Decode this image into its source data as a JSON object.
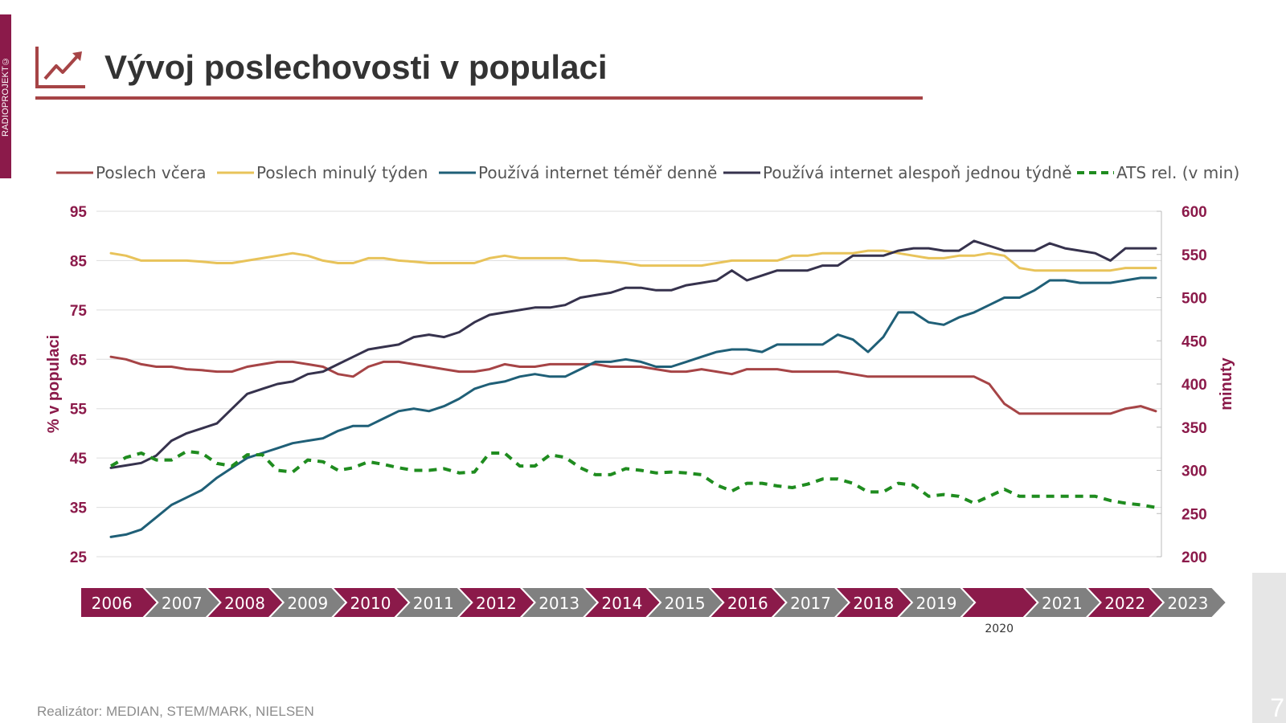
{
  "slide": {
    "title": "Vývoj poslechovosti v populaci",
    "side_brand": "RADIOPROJEKT©",
    "footer": "Realizátor: MEDIAN, STEM/MARK, NIELSEN",
    "page_number": "7",
    "colors": {
      "accent": "#8b1a4a",
      "rule": "#a64446",
      "arrow_gray": "#808080"
    }
  },
  "chart_data": {
    "type": "line",
    "title": "",
    "ylabel": "% v populaci",
    "y2label": "minuty",
    "ylim": [
      25,
      95
    ],
    "yticks": [
      95,
      85,
      75,
      65,
      55,
      45,
      35,
      25
    ],
    "y2lim": [
      200,
      600
    ],
    "y2ticks": [
      600,
      550,
      500,
      450,
      400,
      350,
      300,
      250,
      200
    ],
    "legend_position": "top",
    "grid": true,
    "x_start": 2006,
    "x_end": 2023.75,
    "year_labels": [
      "2006",
      "2007",
      "2008",
      "2009",
      "2010",
      "2011",
      "2012",
      "2013",
      "2014",
      "2015",
      "2016",
      "2017",
      "2018",
      "2019",
      "2020",
      "2021",
      "2022",
      "2023"
    ],
    "year_sub_label": "2020",
    "series": [
      {
        "name": "Poslech včera",
        "axis": "left",
        "color": "#a64446",
        "dash": false,
        "values": [
          65.5,
          65,
          64,
          63.5,
          63.5,
          63,
          62.8,
          62.5,
          62.5,
          63.5,
          64,
          64.5,
          64.5,
          64,
          63.5,
          62,
          61.5,
          63.5,
          64.5,
          64.5,
          64,
          63.5,
          63,
          62.5,
          62.5,
          63,
          64,
          63.5,
          63.5,
          64,
          64,
          64,
          64,
          63.5,
          63.5,
          63.5,
          63,
          62.5,
          62.5,
          63,
          62.5,
          62,
          63,
          63,
          63,
          62.5,
          62.5,
          62.5,
          62.5,
          62,
          61.5,
          61.5,
          61.5,
          61.5,
          61.5,
          61.5,
          61.5,
          61.5,
          60,
          56,
          54,
          54,
          54,
          54,
          54,
          54,
          54,
          55,
          55.5,
          54.5
        ]
      },
      {
        "name": "Poslech minulý týden",
        "axis": "left",
        "color": "#e8c35a",
        "dash": false,
        "values": [
          86.5,
          86,
          85,
          85,
          85,
          85,
          84.8,
          84.5,
          84.5,
          85,
          85.5,
          86,
          86.5,
          86,
          85,
          84.5,
          84.5,
          85.5,
          85.5,
          85,
          84.8,
          84.5,
          84.5,
          84.5,
          84.5,
          85.5,
          86,
          85.5,
          85.5,
          85.5,
          85.5,
          85,
          85,
          84.8,
          84.5,
          84,
          84,
          84,
          84,
          84,
          84.5,
          85,
          85,
          85,
          85,
          86,
          86,
          86.5,
          86.5,
          86.5,
          87,
          87,
          86.5,
          86,
          85.5,
          85.5,
          86,
          86,
          86.5,
          86,
          83.5,
          83,
          83,
          83,
          83,
          83,
          83,
          83.5,
          83.5,
          83.5
        ]
      },
      {
        "name": "Používá internet téměř denně",
        "axis": "left",
        "color": "#1f5f77",
        "dash": false,
        "values": [
          29,
          29.5,
          30.5,
          33,
          35.5,
          37,
          38.5,
          41,
          43,
          45,
          46,
          47,
          48,
          48.5,
          49,
          50.5,
          51.5,
          51.5,
          53,
          54.5,
          55,
          54.5,
          55.5,
          57,
          59,
          60,
          60.5,
          61.5,
          62,
          61.5,
          61.5,
          63,
          64.5,
          64.5,
          65,
          64.5,
          63.5,
          63.5,
          64.5,
          65.5,
          66.5,
          67,
          67,
          66.5,
          68,
          68,
          68,
          68,
          70,
          69,
          66.5,
          69.5,
          74.5,
          74.5,
          72.5,
          72,
          73.5,
          74.5,
          76,
          77.5,
          77.5,
          79,
          81,
          81,
          80.5,
          80.5,
          80.5,
          81,
          81.5,
          81.5
        ]
      },
      {
        "name": "Používá internet alespoň jednou týdně",
        "axis": "left",
        "color": "#36324d",
        "dash": false,
        "values": [
          43,
          43.5,
          44,
          45.5,
          48.5,
          50,
          51,
          52,
          55,
          58,
          59,
          60,
          60.5,
          62,
          62.5,
          64,
          65.5,
          67,
          67.5,
          68,
          69.5,
          70,
          69.5,
          70.5,
          72.5,
          74,
          74.5,
          75,
          75.5,
          75.5,
          76,
          77.5,
          78,
          78.5,
          79.5,
          79.5,
          79,
          79,
          80,
          80.5,
          81,
          83,
          81,
          82,
          83,
          83,
          83,
          84,
          84,
          86,
          86,
          86,
          87,
          87.5,
          87.5,
          87,
          87,
          89,
          88,
          87,
          87,
          87,
          88.5,
          87.5,
          87,
          86.5,
          85,
          87.5,
          87.5,
          87.5
        ]
      },
      {
        "name": "ATS rel. (v min)",
        "axis": "right",
        "color": "#1f8c1f",
        "dash": true,
        "values": [
          305,
          315,
          320,
          312,
          312,
          322,
          320,
          308,
          305,
          318,
          318,
          300,
          298,
          312,
          310,
          300,
          303,
          310,
          307,
          303,
          300,
          300,
          302,
          297,
          298,
          320,
          320,
          305,
          305,
          318,
          315,
          303,
          295,
          295,
          302,
          300,
          297,
          298,
          297,
          295,
          283,
          276,
          285,
          285,
          282,
          280,
          284,
          290,
          290,
          285,
          275,
          275,
          285,
          283,
          270,
          272,
          270,
          262,
          270,
          278,
          270,
          270,
          270,
          270,
          270,
          270,
          265,
          262,
          260,
          257
        ]
      }
    ]
  }
}
